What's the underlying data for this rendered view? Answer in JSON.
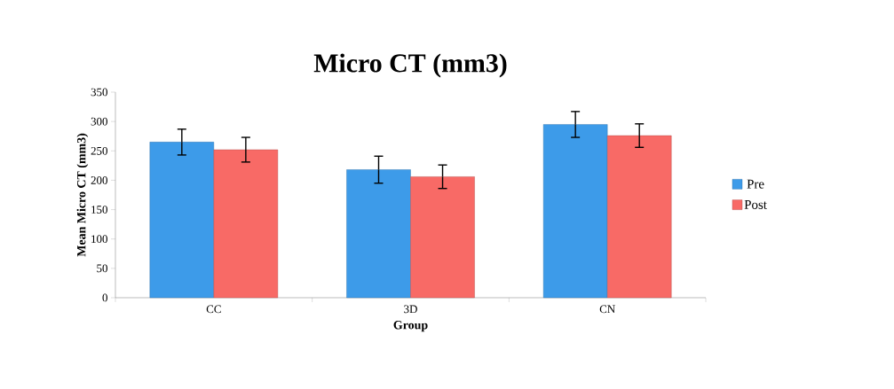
{
  "chart_data": {
    "type": "bar",
    "title": "Micro CT (mm3)",
    "xlabel": "Group",
    "ylabel": "Mean Micro CT (mm3)",
    "categories": [
      "CC",
      "3D",
      "CN"
    ],
    "series": [
      {
        "name": "Pre",
        "color": "#3d9be9",
        "values": [
          265,
          218,
          295
        ],
        "errors": [
          22,
          23,
          22
        ]
      },
      {
        "name": "Post",
        "color": "#f86a66",
        "values": [
          252,
          206,
          276
        ],
        "errors": [
          21,
          20,
          20
        ]
      }
    ],
    "ylim": [
      0,
      350
    ],
    "yticks": [
      0,
      50,
      100,
      150,
      200,
      250,
      300,
      350
    ],
    "grid": false,
    "legend": "right"
  }
}
